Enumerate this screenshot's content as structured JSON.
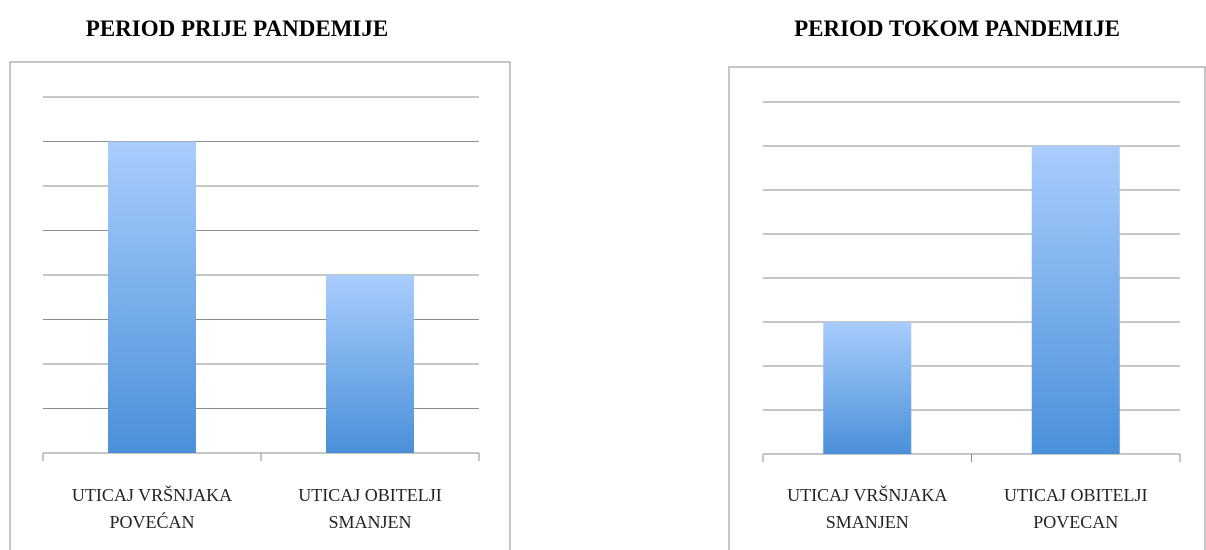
{
  "chart_data": [
    {
      "type": "bar",
      "title": "PERIOD PRIJE PANDEMIJE",
      "categories": [
        "UTICAJ VRŠNJAKA\nPOVEĆAN",
        "UTICAJ OBITELJI\nSMANJEN"
      ],
      "values": [
        7,
        4
      ],
      "ylim": [
        0,
        8
      ],
      "yticks": [
        0,
        1,
        2,
        3,
        4,
        5,
        6,
        7,
        8
      ],
      "grid": true,
      "color": [
        "#a9cdfd",
        "#4a90d9"
      ]
    },
    {
      "type": "bar",
      "title": "PERIOD TOKOM PANDEMIJE",
      "categories": [
        "UTICAJ VRŠNJAKA\nSMANJEN",
        "UTICAJ OBITELJI\nPOVECAN"
      ],
      "values": [
        3,
        7
      ],
      "ylim": [
        0,
        8
      ],
      "yticks": [
        0,
        1,
        2,
        3,
        4,
        5,
        6,
        7,
        8
      ],
      "grid": true,
      "color": [
        "#a9cdfd",
        "#4a90d9"
      ]
    }
  ]
}
